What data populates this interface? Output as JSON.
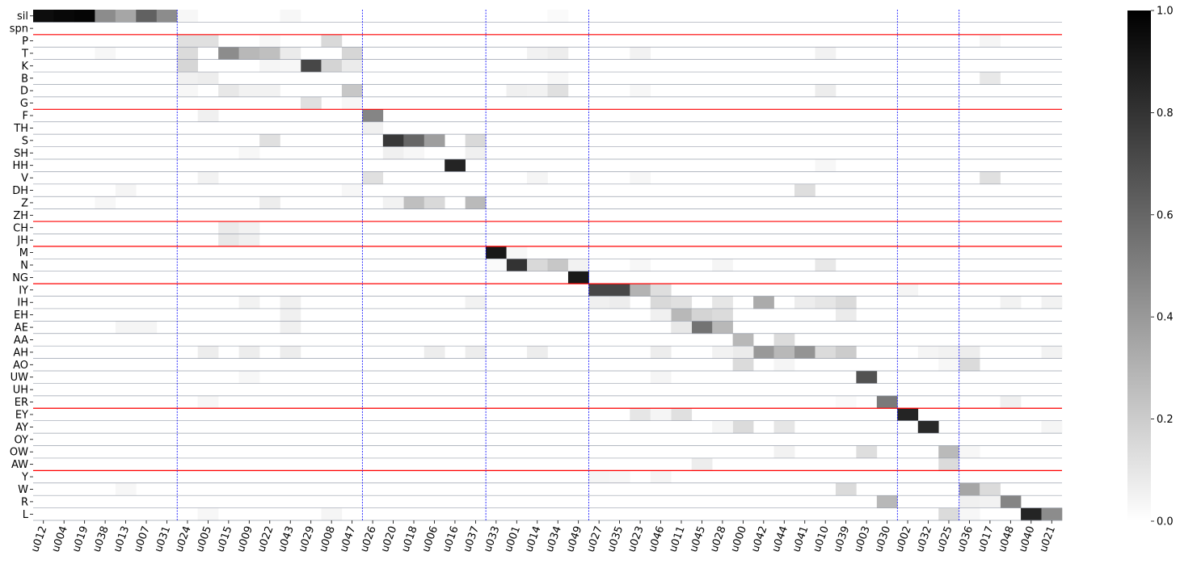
{
  "chart_data": {
    "type": "heatmap",
    "rows": [
      "sil",
      "spn",
      "P",
      "T",
      "K",
      "B",
      "D",
      "G",
      "F",
      "TH",
      "S",
      "SH",
      "HH",
      "V",
      "DH",
      "Z",
      "ZH",
      "CH",
      "JH",
      "M",
      "N",
      "NG",
      "IY",
      "IH",
      "EH",
      "AE",
      "AA",
      "AH",
      "AO",
      "UW",
      "UH",
      "ER",
      "EY",
      "AY",
      "OY",
      "OW",
      "AW",
      "Y",
      "W",
      "R",
      "L"
    ],
    "columns": [
      "u012",
      "u004",
      "u019",
      "u038",
      "u013",
      "u007",
      "u031",
      "u024",
      "u005",
      "u015",
      "u009",
      "u022",
      "u043",
      "u029",
      "u008",
      "u047",
      "u026",
      "u020",
      "u018",
      "u006",
      "u016",
      "u037",
      "u033",
      "u001",
      "u014",
      "u034",
      "u049",
      "u027",
      "u035",
      "u023",
      "u046",
      "u011",
      "u045",
      "u028",
      "u000",
      "u042",
      "u044",
      "u041",
      "u010",
      "u039",
      "u003",
      "u030",
      "u002",
      "u032",
      "u025",
      "u036",
      "u017",
      "u048",
      "u040",
      "u021"
    ],
    "values": [
      [
        "sil",
        "u012",
        0.95
      ],
      [
        "sil",
        "u004",
        0.97
      ],
      [
        "sil",
        "u019",
        0.98
      ],
      [
        "sil",
        "u038",
        0.45
      ],
      [
        "sil",
        "u013",
        0.35
      ],
      [
        "sil",
        "u007",
        0.62
      ],
      [
        "sil",
        "u031",
        0.45
      ],
      [
        "sil",
        "u024",
        0.03
      ],
      [
        "sil",
        "u043",
        0.03
      ],
      [
        "sil",
        "u034",
        0.02
      ],
      [
        "P",
        "u024",
        0.12
      ],
      [
        "P",
        "u005",
        0.12
      ],
      [
        "P",
        "u008",
        0.15
      ],
      [
        "P",
        "u022",
        0.03
      ],
      [
        "P",
        "u017",
        0.04
      ],
      [
        "T",
        "u024",
        0.14
      ],
      [
        "T",
        "u015",
        0.45
      ],
      [
        "T",
        "u009",
        0.28
      ],
      [
        "T",
        "u022",
        0.25
      ],
      [
        "T",
        "u043",
        0.08
      ],
      [
        "T",
        "u047",
        0.16
      ],
      [
        "T",
        "u038",
        0.03
      ],
      [
        "T",
        "u014",
        0.05
      ],
      [
        "T",
        "u034",
        0.07
      ],
      [
        "T",
        "u023",
        0.05
      ],
      [
        "T",
        "u010",
        0.05
      ],
      [
        "K",
        "u024",
        0.16
      ],
      [
        "K",
        "u029",
        0.72
      ],
      [
        "K",
        "u008",
        0.17
      ],
      [
        "K",
        "u047",
        0.08
      ],
      [
        "K",
        "u022",
        0.04
      ],
      [
        "K",
        "u043",
        0.03
      ],
      [
        "B",
        "u024",
        0.06
      ],
      [
        "B",
        "u005",
        0.07
      ],
      [
        "B",
        "u017",
        0.09
      ],
      [
        "B",
        "u034",
        0.03
      ],
      [
        "D",
        "u015",
        0.09
      ],
      [
        "D",
        "u009",
        0.05
      ],
      [
        "D",
        "u022",
        0.05
      ],
      [
        "D",
        "u047",
        0.22
      ],
      [
        "D",
        "u001",
        0.06
      ],
      [
        "D",
        "u014",
        0.05
      ],
      [
        "D",
        "u034",
        0.12
      ],
      [
        "D",
        "u010",
        0.07
      ],
      [
        "D",
        "u023",
        0.03
      ],
      [
        "D",
        "u024",
        0.03
      ],
      [
        "G",
        "u029",
        0.12
      ],
      [
        "G",
        "u047",
        0.03
      ],
      [
        "F",
        "u026",
        0.48
      ],
      [
        "F",
        "u005",
        0.06
      ],
      [
        "TH",
        "u026",
        0.06
      ],
      [
        "S",
        "u020",
        0.78
      ],
      [
        "S",
        "u018",
        0.6
      ],
      [
        "S",
        "u006",
        0.38
      ],
      [
        "S",
        "u037",
        0.15
      ],
      [
        "S",
        "u022",
        0.12
      ],
      [
        "SH",
        "u020",
        0.06
      ],
      [
        "SH",
        "u018",
        0.03
      ],
      [
        "SH",
        "u037",
        0.06
      ],
      [
        "SH",
        "u009",
        0.03
      ],
      [
        "HH",
        "u016",
        0.86
      ],
      [
        "HH",
        "u010",
        0.03
      ],
      [
        "V",
        "u026",
        0.12
      ],
      [
        "V",
        "u005",
        0.05
      ],
      [
        "V",
        "u014",
        0.04
      ],
      [
        "V",
        "u017",
        0.12
      ],
      [
        "V",
        "u023",
        0.03
      ],
      [
        "DH",
        "u041",
        0.13
      ],
      [
        "DH",
        "u013",
        0.04
      ],
      [
        "DH",
        "u047",
        0.03
      ],
      [
        "Z",
        "u018",
        0.25
      ],
      [
        "Z",
        "u006",
        0.15
      ],
      [
        "Z",
        "u037",
        0.27
      ],
      [
        "Z",
        "u020",
        0.05
      ],
      [
        "Z",
        "u022",
        0.07
      ],
      [
        "Z",
        "u038",
        0.03
      ],
      [
        "CH",
        "u015",
        0.08
      ],
      [
        "CH",
        "u009",
        0.05
      ],
      [
        "JH",
        "u015",
        0.09
      ],
      [
        "JH",
        "u009",
        0.06
      ],
      [
        "M",
        "u033",
        0.9
      ],
      [
        "M",
        "u001",
        0.03
      ],
      [
        "N",
        "u001",
        0.8
      ],
      [
        "N",
        "u014",
        0.15
      ],
      [
        "N",
        "u034",
        0.22
      ],
      [
        "N",
        "u049",
        0.05
      ],
      [
        "N",
        "u010",
        0.09
      ],
      [
        "N",
        "u033",
        0.02
      ],
      [
        "N",
        "u023",
        0.03
      ],
      [
        "N",
        "u028",
        0.04
      ],
      [
        "NG",
        "u049",
        0.9
      ],
      [
        "IY",
        "u027",
        0.72
      ],
      [
        "IY",
        "u035",
        0.72
      ],
      [
        "IY",
        "u023",
        0.3
      ],
      [
        "IY",
        "u046",
        0.13
      ],
      [
        "IY",
        "u002",
        0.04
      ],
      [
        "IH",
        "u027",
        0.06
      ],
      [
        "IH",
        "u035",
        0.07
      ],
      [
        "IH",
        "u046",
        0.15
      ],
      [
        "IH",
        "u011",
        0.12
      ],
      [
        "IH",
        "u028",
        0.1
      ],
      [
        "IH",
        "u042",
        0.33
      ],
      [
        "IH",
        "u041",
        0.07
      ],
      [
        "IH",
        "u010",
        0.1
      ],
      [
        "IH",
        "u039",
        0.14
      ],
      [
        "IH",
        "u043",
        0.06
      ],
      [
        "IH",
        "u009",
        0.05
      ],
      [
        "IH",
        "u037",
        0.05
      ],
      [
        "IH",
        "u048",
        0.05
      ],
      [
        "IH",
        "u021",
        0.05
      ],
      [
        "EH",
        "u011",
        0.28
      ],
      [
        "EH",
        "u045",
        0.17
      ],
      [
        "EH",
        "u028",
        0.14
      ],
      [
        "EH",
        "u046",
        0.06
      ],
      [
        "EH",
        "u039",
        0.08
      ],
      [
        "EH",
        "u043",
        0.06
      ],
      [
        "AE",
        "u045",
        0.55
      ],
      [
        "AE",
        "u028",
        0.28
      ],
      [
        "AE",
        "u011",
        0.09
      ],
      [
        "AE",
        "u007",
        0.04
      ],
      [
        "AE",
        "u013",
        0.04
      ],
      [
        "AE",
        "u043",
        0.06
      ],
      [
        "AA",
        "u000",
        0.28
      ],
      [
        "AA",
        "u044",
        0.14
      ],
      [
        "AH",
        "u042",
        0.4
      ],
      [
        "AH",
        "u044",
        0.28
      ],
      [
        "AH",
        "u041",
        0.42
      ],
      [
        "AH",
        "u000",
        0.08
      ],
      [
        "AH",
        "u010",
        0.14
      ],
      [
        "AH",
        "u039",
        0.2
      ],
      [
        "AH",
        "u005",
        0.07
      ],
      [
        "AH",
        "u009",
        0.07
      ],
      [
        "AH",
        "u006",
        0.07
      ],
      [
        "AH",
        "u014",
        0.07
      ],
      [
        "AH",
        "u037",
        0.07
      ],
      [
        "AH",
        "u043",
        0.07
      ],
      [
        "AH",
        "u046",
        0.07
      ],
      [
        "AH",
        "u028",
        0.05
      ],
      [
        "AH",
        "u032",
        0.04
      ],
      [
        "AH",
        "u025",
        0.05
      ],
      [
        "AH",
        "u036",
        0.07
      ],
      [
        "AH",
        "u021",
        0.05
      ],
      [
        "AO",
        "u000",
        0.14
      ],
      [
        "AO",
        "u036",
        0.14
      ],
      [
        "AO",
        "u044",
        0.04
      ],
      [
        "AO",
        "u025",
        0.03
      ],
      [
        "UW",
        "u003",
        0.68
      ],
      [
        "UW",
        "u046",
        0.04
      ],
      [
        "UW",
        "u009",
        0.03
      ],
      [
        "ER",
        "u030",
        0.52
      ],
      [
        "ER",
        "u048",
        0.06
      ],
      [
        "ER",
        "u039",
        0.02
      ],
      [
        "ER",
        "u005",
        0.03
      ],
      [
        "EY",
        "u002",
        0.86
      ],
      [
        "EY",
        "u023",
        0.1
      ],
      [
        "EY",
        "u011",
        0.12
      ],
      [
        "EY",
        "u046",
        0.04
      ],
      [
        "AY",
        "u032",
        0.84
      ],
      [
        "AY",
        "u000",
        0.14
      ],
      [
        "AY",
        "u044",
        0.1
      ],
      [
        "AY",
        "u028",
        0.04
      ],
      [
        "AY",
        "u021",
        0.04
      ],
      [
        "OW",
        "u025",
        0.27
      ],
      [
        "OW",
        "u003",
        0.13
      ],
      [
        "OW",
        "u044",
        0.05
      ],
      [
        "OW",
        "u036",
        0.03
      ],
      [
        "AW",
        "u025",
        0.14
      ],
      [
        "AW",
        "u045",
        0.07
      ],
      [
        "Y",
        "u027",
        0.04
      ],
      [
        "Y",
        "u035",
        0.03
      ],
      [
        "Y",
        "u046",
        0.04
      ],
      [
        "W",
        "u036",
        0.35
      ],
      [
        "W",
        "u017",
        0.14
      ],
      [
        "W",
        "u039",
        0.14
      ],
      [
        "W",
        "u013",
        0.03
      ],
      [
        "R",
        "u030",
        0.28
      ],
      [
        "R",
        "u048",
        0.48
      ],
      [
        "R",
        "u036",
        0.06
      ],
      [
        "R",
        "u017",
        0.05
      ],
      [
        "L",
        "u040",
        0.86
      ],
      [
        "L",
        "u021",
        0.45
      ],
      [
        "L",
        "u025",
        0.14
      ],
      [
        "L",
        "u036",
        0.03
      ],
      [
        "L",
        "u008",
        0.04
      ],
      [
        "L",
        "u005",
        0.03
      ]
    ],
    "value_range": [
      0,
      1
    ],
    "colorscale": "greys",
    "colorbar_ticks": [
      "0.0",
      "0.2",
      "0.4",
      "0.6",
      "0.8",
      "1.0"
    ],
    "row_group_separators_after": [
      "spn",
      "G",
      "ZH",
      "JH",
      "NG",
      "ER",
      "AW"
    ],
    "column_group_separators_after": [
      "u031",
      "u047",
      "u037",
      "u049",
      "u030",
      "u025"
    ],
    "colors": {
      "row_separator": "#ff0000",
      "column_separator": "#0000ff",
      "gridline": "#9aa0ad"
    }
  }
}
